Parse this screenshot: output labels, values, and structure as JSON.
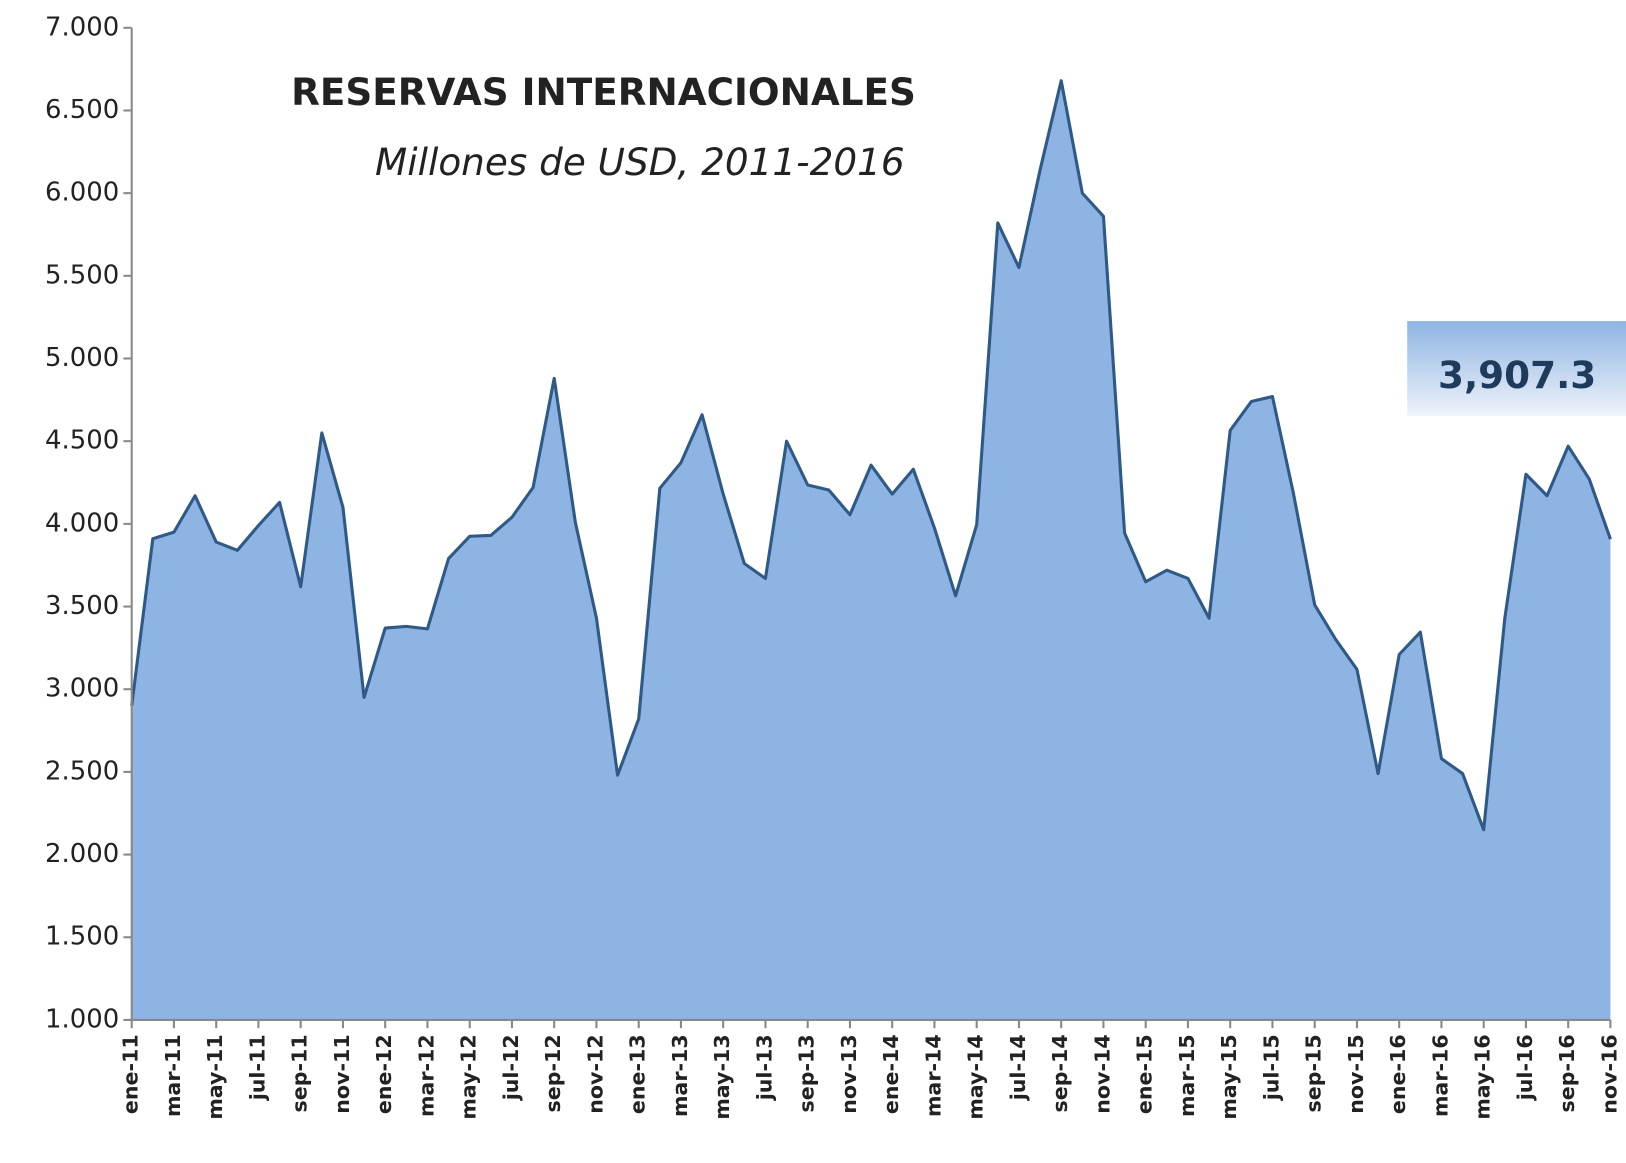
{
  "chart_data": {
    "type": "area",
    "title": "RESERVAS INTERNACIONALES",
    "subtitle": "Millones de USD, 2011-2016",
    "annotation": "3,907.3",
    "categories": [
      "ene-11",
      null,
      "mar-11",
      null,
      "may-11",
      null,
      "jul-11",
      null,
      "sep-11",
      null,
      "nov-11",
      null,
      "ene-12",
      null,
      "mar-12",
      null,
      "may-12",
      null,
      "jul-12",
      null,
      "sep-12",
      null,
      "nov-12",
      null,
      "ene-13",
      null,
      "mar-13",
      null,
      "may-13",
      null,
      "jul-13",
      null,
      "sep-13",
      null,
      "nov-13",
      null,
      "ene-14",
      null,
      "mar-14",
      null,
      "may-14",
      null,
      "jul-14",
      null,
      "sep-14",
      null,
      "nov-14",
      null,
      "ene-15",
      null,
      "mar-15",
      null,
      "may-15",
      null,
      "jul-15",
      null,
      "sep-15",
      null,
      "nov-15",
      null,
      "ene-16",
      null,
      "mar-16",
      null,
      "may-16",
      null,
      "jul-16",
      null,
      "sep-16",
      null,
      "nov-16"
    ],
    "values": [
      2900,
      3910,
      3950,
      4170,
      3890,
      3840,
      3990,
      4130,
      3620,
      4550,
      4100,
      2950,
      3370,
      3380,
      3365,
      3790,
      3925,
      3930,
      4040,
      4220,
      4880,
      4010,
      3430,
      2480,
      2820,
      4215,
      4370,
      4660,
      4180,
      3760,
      3670,
      4500,
      4235,
      4205,
      4055,
      4355,
      4180,
      4330,
      3975,
      3565,
      3995,
      5820,
      5550,
      6140,
      6680,
      6000,
      5860,
      3945,
      3650,
      3720,
      3670,
      3430,
      4565,
      4740,
      4770,
      4180,
      3510,
      3300,
      3120,
      2490,
      3210,
      3345,
      2580,
      2490,
      2150,
      3430,
      4300,
      4170,
      4470,
      4270,
      3907.3
    ],
    "color": "#8eb4e3",
    "line_color": "#2f5a87",
    "ylim": [
      1000,
      7000
    ],
    "yticks": [
      {
        "value": 1000,
        "label": "1.000"
      },
      {
        "value": 1500,
        "label": "1.500"
      },
      {
        "value": 2000,
        "label": "2.000"
      },
      {
        "value": 2500,
        "label": "2.500"
      },
      {
        "value": 3000,
        "label": "3.000"
      },
      {
        "value": 3500,
        "label": "3.500"
      },
      {
        "value": 4000,
        "label": "4.000"
      },
      {
        "value": 4500,
        "label": "4.500"
      },
      {
        "value": 5000,
        "label": "5.000"
      },
      {
        "value": 5500,
        "label": "5.500"
      },
      {
        "value": 6000,
        "label": "6.000"
      },
      {
        "value": 6500,
        "label": "6.500"
      },
      {
        "value": 7000,
        "label": "7.000"
      }
    ],
    "grid": false
  }
}
